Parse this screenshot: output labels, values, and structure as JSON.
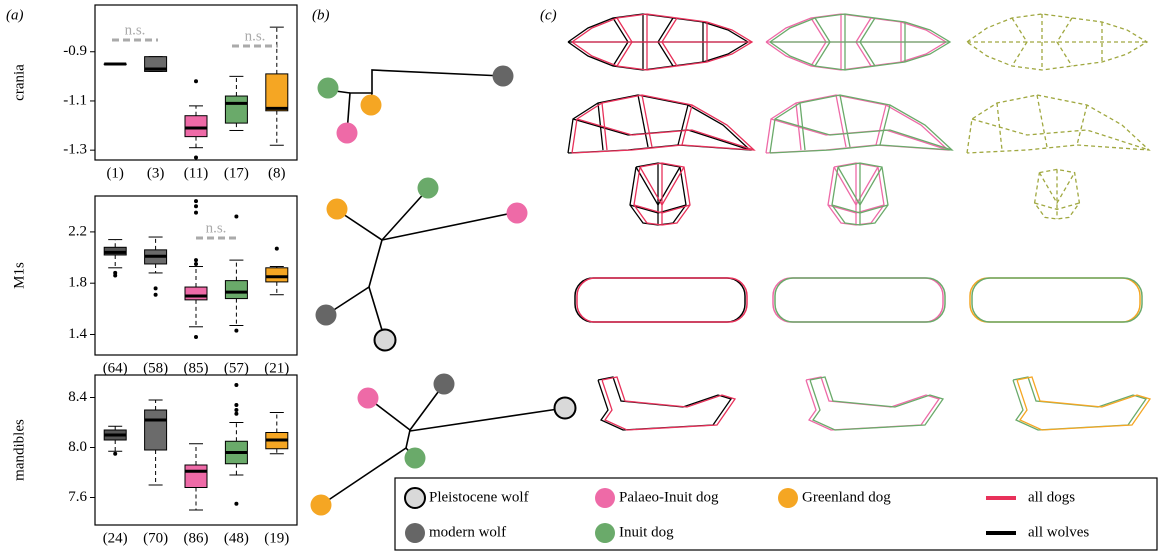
{
  "panel_labels": [
    "(a)",
    "(b)",
    "(c)"
  ],
  "chart_data": [
    {
      "type": "box",
      "y_label": "crania",
      "categories": [
        "(1)",
        "(3)",
        "(11)",
        "(17)",
        "(8)"
      ],
      "colors": [
        "#555555",
        "#6b6b6b",
        "#ee6aa7",
        "#6aaa6a",
        "#f5a623"
      ],
      "boxes": [
        {
          "whisker_low": -0.95,
          "q1": -0.95,
          "median": -0.95,
          "q3": -0.95,
          "whisker_high": -0.95,
          "outliers": []
        },
        {
          "whisker_low": -0.98,
          "q1": -0.98,
          "median": -0.97,
          "q3": -0.92,
          "whisker_high": -0.92,
          "outliers": []
        },
        {
          "whisker_low": -1.29,
          "q1": -1.245,
          "median": -1.21,
          "q3": -1.16,
          "whisker_high": -1.12,
          "outliers": [
            -1.02,
            -1.33
          ]
        },
        {
          "whisker_low": -1.22,
          "q1": -1.19,
          "median": -1.11,
          "q3": -1.08,
          "whisker_high": -1.0,
          "outliers": []
        },
        {
          "whisker_low": -1.28,
          "q1": -1.14,
          "median": -1.13,
          "q3": -0.99,
          "whisker_high": -0.8,
          "outliers": []
        }
      ],
      "ylim": [
        -1.34,
        -0.71
      ],
      "yticks": [
        -0.9,
        -1.1,
        -1.3
      ],
      "annotations": [
        "n.s.",
        "n.s."
      ]
    },
    {
      "type": "box",
      "y_label": "M1s",
      "categories": [
        "(64)",
        "(58)",
        "(85)",
        "(57)",
        "(21)"
      ],
      "colors": [
        "#555555",
        "#6b6b6b",
        "#ee6aa7",
        "#6aaa6a",
        "#f5a623"
      ],
      "boxes": [
        {
          "whisker_low": 1.92,
          "q1": 2.02,
          "median": 2.04,
          "q3": 2.08,
          "whisker_high": 2.14,
          "outliers": [
            1.86,
            1.88
          ]
        },
        {
          "whisker_low": 1.88,
          "q1": 1.95,
          "median": 2.01,
          "q3": 2.06,
          "whisker_high": 2.16,
          "outliers": [
            1.76,
            1.71
          ]
        },
        {
          "whisker_low": 1.46,
          "q1": 1.67,
          "median": 1.7,
          "q3": 1.77,
          "whisker_high": 1.93,
          "outliers": [
            2.44,
            2.4,
            2.35,
            1.98,
            1.95,
            1.38
          ]
        },
        {
          "whisker_low": 1.47,
          "q1": 1.68,
          "median": 1.73,
          "q3": 1.82,
          "whisker_high": 1.98,
          "outliers": [
            2.32,
            1.43
          ]
        },
        {
          "whisker_low": 1.71,
          "q1": 1.81,
          "median": 1.85,
          "q3": 1.92,
          "whisker_high": 1.93,
          "outliers": [
            2.07
          ]
        }
      ],
      "ylim": [
        1.24,
        2.48
      ],
      "yticks": [
        2.2,
        1.8,
        1.4
      ],
      "annotations": [
        "n.s."
      ]
    },
    {
      "type": "box",
      "y_label": "mandibles",
      "categories": [
        "(24)",
        "(70)",
        "(86)",
        "(48)",
        "(19)"
      ],
      "colors": [
        "#555555",
        "#6b6b6b",
        "#ee6aa7",
        "#6aaa6a",
        "#f5a623"
      ],
      "boxes": [
        {
          "whisker_low": 7.97,
          "q1": 8.06,
          "median": 8.1,
          "q3": 8.14,
          "whisker_high": 8.17,
          "outliers": [
            7.95
          ]
        },
        {
          "whisker_low": 7.7,
          "q1": 7.98,
          "median": 8.22,
          "q3": 8.3,
          "whisker_high": 8.38,
          "outliers": []
        },
        {
          "whisker_low": 7.5,
          "q1": 7.68,
          "median": 7.81,
          "q3": 7.86,
          "whisker_high": 8.03,
          "outliers": []
        },
        {
          "whisker_low": 7.78,
          "q1": 7.87,
          "median": 7.96,
          "q3": 8.05,
          "whisker_high": 8.2,
          "outliers": [
            8.5,
            8.34,
            8.3,
            8.27,
            7.55
          ]
        },
        {
          "whisker_low": 7.95,
          "q1": 7.99,
          "median": 8.06,
          "q3": 8.12,
          "whisker_high": 8.28,
          "outliers": []
        }
      ],
      "ylim": [
        7.38,
        8.58
      ],
      "yticks": [
        8.4,
        {
          "value": 8,
          "label": "8.0"
        },
        7.6
      ],
      "annotations": []
    }
  ],
  "legend": [
    {
      "name": "Pleistocene wolf",
      "color": "#d9d9d9",
      "kind": "circle"
    },
    {
      "name": "Palaeo-Inuit dog",
      "color": "#ee6aa7",
      "kind": "circle"
    },
    {
      "name": "Greenland dog",
      "color": "#f5a623",
      "kind": "circle"
    },
    {
      "name": "all dogs",
      "color": "#e8315a",
      "kind": "line"
    },
    {
      "name": "modern wolf",
      "color": "#666666",
      "kind": "circle"
    },
    {
      "name": "Inuit dog",
      "color": "#6aaa6a",
      "kind": "circle"
    },
    {
      "name": "all wolves",
      "color": "#000000",
      "kind": "line"
    }
  ]
}
